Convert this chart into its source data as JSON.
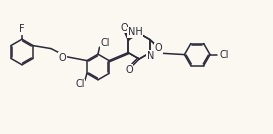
{
  "bg_color": "#FAF8F0",
  "line_color": "#2a2a3a",
  "atom_label_color": "#1a1a2a",
  "font_size": 7.0,
  "line_width": 1.1,
  "dbo": 0.012,
  "figsize": [
    2.73,
    1.34
  ],
  "dpi": 100,
  "xlim": [
    0,
    2.73
  ],
  "ylim": [
    0,
    1.34
  ]
}
